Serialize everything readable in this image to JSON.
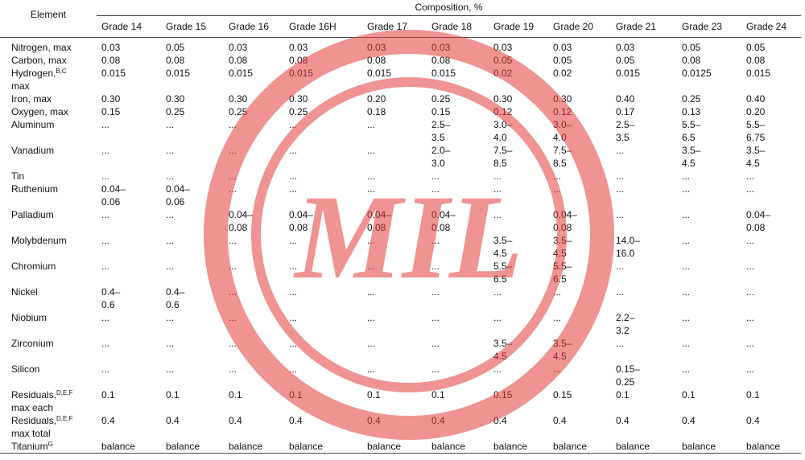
{
  "header": {
    "element": "Element",
    "composition": "Composition, %",
    "grades": [
      "Grade 14",
      "Grade 15",
      "Grade 16",
      "Grade 16H",
      "Grade 17",
      "Grade 18",
      "Grade 19",
      "Grade 20",
      "Grade 21",
      "Grade 23",
      "Grade 24"
    ]
  },
  "rows": [
    {
      "element": "Nitrogen, max",
      "values": [
        "0.03",
        "0.05",
        "0.03",
        "0.03",
        "0.03",
        "0.03",
        "0.03",
        "0.03",
        "0.03",
        "0.05",
        "0.05"
      ]
    },
    {
      "element": "Carbon, max",
      "values": [
        "0.08",
        "0.08",
        "0.08",
        "0.08",
        "0.08",
        "0.08",
        "0.05",
        "0.05",
        "0.05",
        "0.08",
        "0.08"
      ]
    },
    {
      "element": "Hydrogen,",
      "sup": "B,C",
      "after": "max",
      "values": [
        "0.015",
        "0.015",
        "0.015",
        "0.015",
        "0.015",
        "0.015",
        "0.02",
        "0.02",
        "0.015",
        "0.0125",
        "0.015"
      ]
    },
    {
      "element": "Iron, max",
      "values": [
        "0.30",
        "0.30",
        "0.30",
        "0.30",
        "0.20",
        "0.25",
        "0.30",
        "0.30",
        "0.40",
        "0.25",
        "0.40"
      ]
    },
    {
      "element": "Oxygen, max",
      "values": [
        "0.15",
        "0.25",
        "0.25",
        "0.25",
        "0.18",
        "0.15",
        "0.12",
        "0.12",
        "0.17",
        "0.13",
        "0.20"
      ]
    },
    {
      "element": "Aluminum",
      "values": [
        "...",
        "...",
        "...",
        "...",
        "...",
        "2.5–3.5",
        "3.0–4.0",
        "3.0–4.0",
        "2.5–3.5",
        "5.5–6.5",
        "5.5–6.75"
      ]
    },
    {
      "element": "Vanadium",
      "values": [
        "...",
        "...",
        "...",
        "...",
        "...",
        "2.0–3.0",
        "7.5–8.5",
        "7.5–8.5",
        "...",
        "3.5–4.5",
        "3.5–4.5"
      ]
    },
    {
      "element": "Tin",
      "values": [
        "...",
        "...",
        "...",
        "...",
        "...",
        "...",
        "...",
        "...",
        "...",
        "...",
        "..."
      ]
    },
    {
      "element": "Ruthenium",
      "values": [
        "0.04–0.06",
        "0.04–0.06",
        "...",
        "...",
        "...",
        "...",
        "...",
        "...",
        "...",
        "...",
        "..."
      ]
    },
    {
      "element": "Palladium",
      "values": [
        "...",
        "...",
        "0.04–0.08",
        "0.04–0.08",
        "0.04–0.08",
        "0.04–0.08",
        "...",
        "0.04–0.08",
        "...",
        "...",
        "0.04–0.08"
      ]
    },
    {
      "element": "Molybdenum",
      "values": [
        "...",
        "...",
        "...",
        "...",
        "...",
        "...",
        "3.5–4.5",
        "3.5–4.5",
        "14.0–16.0",
        "...",
        "..."
      ]
    },
    {
      "element": "Chromium",
      "values": [
        "...",
        "...",
        "...",
        "...",
        "...",
        "...",
        "5.5–6.5",
        "5.5–6.5",
        "...",
        "...",
        "..."
      ]
    },
    {
      "element": "Nickel",
      "values": [
        "0.4–0.6",
        "0.4–0.6",
        "...",
        "...",
        "...",
        "...",
        "...",
        "...",
        "...",
        "...",
        "..."
      ]
    },
    {
      "element": "Niobium",
      "values": [
        "...",
        "...",
        "...",
        "...",
        "...",
        "...",
        "...",
        "...",
        "2.2–3.2",
        "...",
        "..."
      ]
    },
    {
      "element": "Zirconium",
      "values": [
        "...",
        "...",
        "...",
        "...",
        "...",
        "...",
        "3.5–4.5",
        "3.5–4.5",
        "...",
        "...",
        "..."
      ]
    },
    {
      "element": "Silicon",
      "values": [
        "...",
        "...",
        "...",
        "...",
        "...",
        "...",
        "...",
        "...",
        "0.15–0.25",
        "...",
        "..."
      ]
    },
    {
      "element": "Residuals,",
      "sup": "D,E,F",
      "after": "max each",
      "values": [
        "0.1",
        "0.1",
        "0.1",
        "0.1",
        "0.1",
        "0.1",
        "0.15",
        "0.15",
        "0.1",
        "0.1",
        "0.1"
      ]
    },
    {
      "element": "Residuals,",
      "sup": "D,E,F",
      "after": "max total",
      "values": [
        "0.4",
        "0.4",
        "0.4",
        "0.4",
        "0.4",
        "0.4",
        "0.4",
        "0.4",
        "0.4",
        "0.4",
        "0.4"
      ]
    },
    {
      "element": "Titanium",
      "sup": "G",
      "values": [
        "balance",
        "balance",
        "balance",
        "balance",
        "balance",
        "balance",
        "balance",
        "balance",
        "balance",
        "balance",
        "balance"
      ]
    }
  ],
  "watermark": "MIL"
}
